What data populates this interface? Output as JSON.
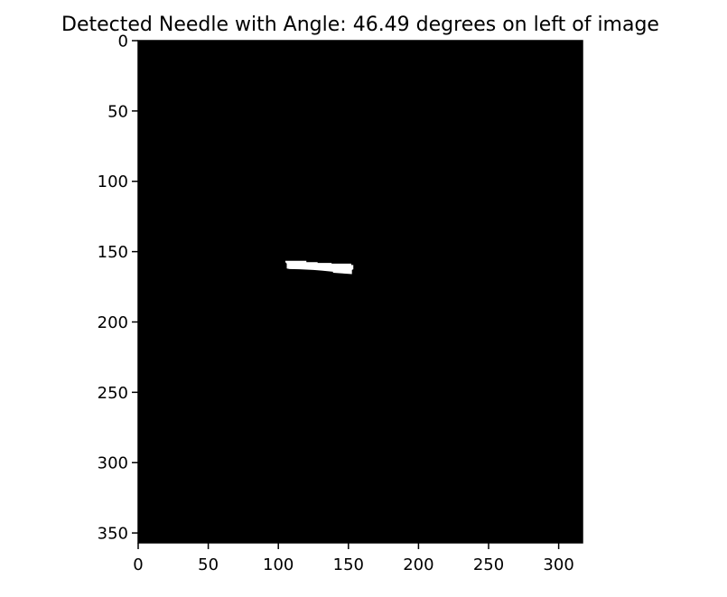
{
  "chart_data": {
    "type": "image",
    "title": "Detected Needle with Angle: 46.49 degrees on left of image",
    "xlabel": "",
    "ylabel": "",
    "xlim": [
      0,
      317
    ],
    "ylim": [
      357,
      0
    ],
    "x_ticks": [
      0,
      50,
      100,
      150,
      200,
      250,
      300
    ],
    "y_ticks": [
      0,
      50,
      100,
      150,
      200,
      250,
      300,
      350
    ],
    "grid": false,
    "background_color": "#000000",
    "foreground_color": "#ffffff",
    "detected_region": {
      "x_range": [
        105,
        154
      ],
      "y_range": [
        155,
        166
      ],
      "outline": [
        [
          105,
          156.5
        ],
        [
          120,
          156.5
        ],
        [
          120,
          157.5
        ],
        [
          128,
          157.5
        ],
        [
          128,
          158
        ],
        [
          138,
          158
        ],
        [
          138,
          158.5
        ],
        [
          152,
          158.5
        ],
        [
          152,
          159.5
        ],
        [
          153.5,
          159.5
        ],
        [
          153.5,
          162.5
        ],
        [
          152.5,
          163
        ],
        [
          152.5,
          166
        ],
        [
          146,
          165.5
        ],
        [
          139,
          165
        ],
        [
          139,
          164.3
        ],
        [
          131,
          163.5
        ],
        [
          125,
          163
        ],
        [
          115,
          162.5
        ],
        [
          108,
          162.4
        ],
        [
          106,
          162
        ],
        [
          106,
          158.5
        ],
        [
          105,
          157.5
        ]
      ]
    }
  }
}
